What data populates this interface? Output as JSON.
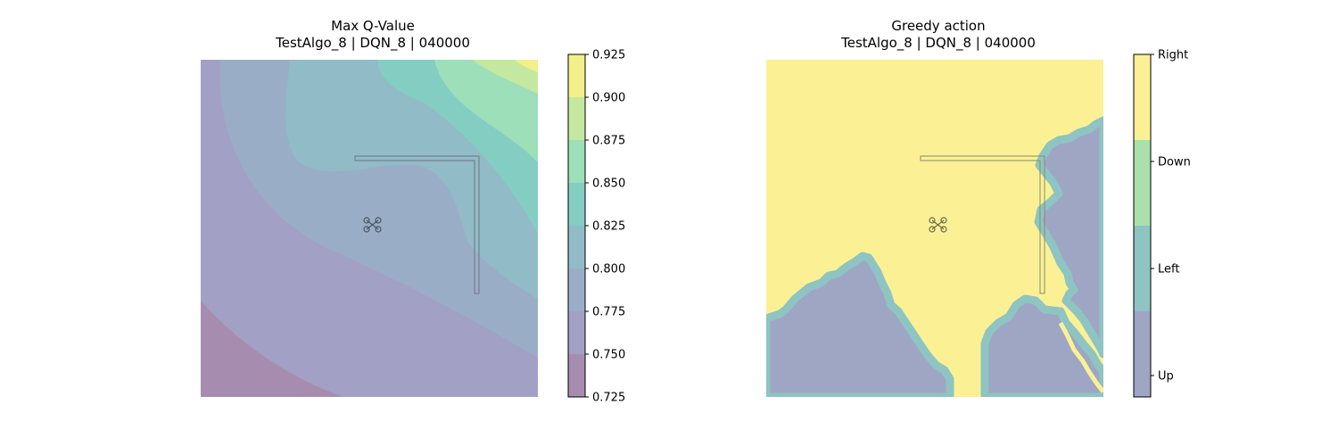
{
  "panels": [
    {
      "title": "Max Q-Value",
      "subtitle": "TestAlgo_8 | DQN_8 | 040000",
      "colorbar_ticks": [
        "0.925",
        "0.900",
        "0.875",
        "0.850",
        "0.825",
        "0.800",
        "0.775",
        "0.750",
        "0.725"
      ]
    },
    {
      "title": "Greedy action",
      "subtitle": "TestAlgo_8 | DQN_8 | 040000",
      "colorbar_ticks": [
        "Right",
        "Down",
        "Left",
        "Up"
      ]
    }
  ],
  "chart_data": [
    {
      "type": "heatmap",
      "title": "Max Q-Value",
      "subtitle": "TestAlgo_8 | DQN_8 | 040000",
      "colorbar": {
        "min": 0.725,
        "max": 0.925,
        "levels": [
          0.725,
          0.75,
          0.775,
          0.8,
          0.825,
          0.85,
          0.875,
          0.9,
          0.925
        ],
        "colors": [
          "#a68db0",
          "#a2a0c4",
          "#9aadc7",
          "#91bbc7",
          "#84cdc3",
          "#9ddfb8",
          "#c5e8a1",
          "#f3ef89"
        ]
      },
      "axes_visible": false
    },
    {
      "type": "heatmap",
      "title": "Greedy action",
      "subtitle": "TestAlgo_8 | DQN_8 | 040000",
      "categories": [
        "Up",
        "Left",
        "Down",
        "Right"
      ],
      "colors": [
        "#9ea6c4",
        "#8ec4c2",
        "#a9e0ac",
        "#fbf194"
      ],
      "axes_visible": false
    }
  ]
}
